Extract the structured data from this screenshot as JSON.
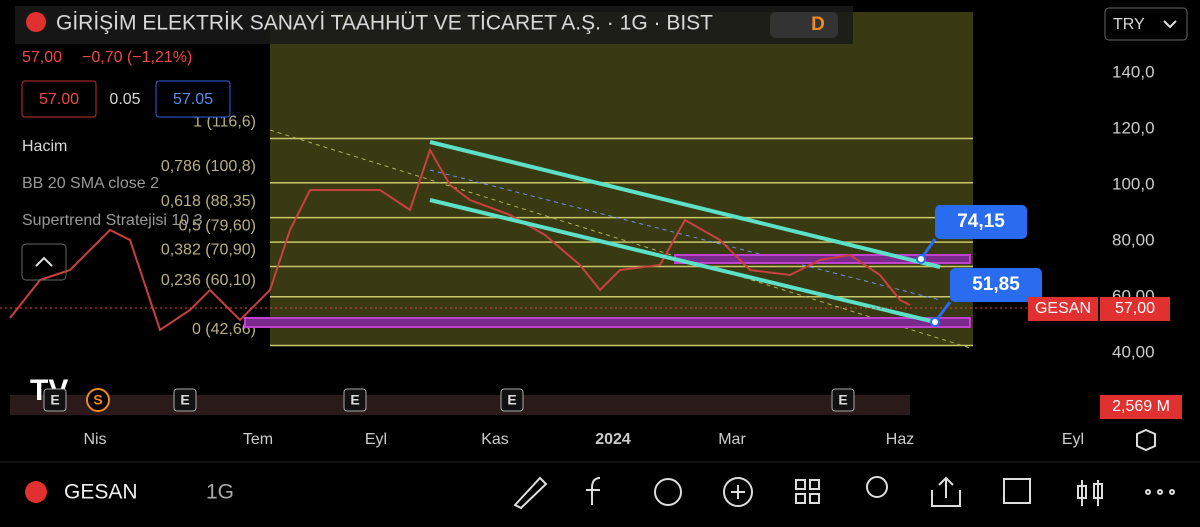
{
  "header": {
    "title": "GİRİŞİM ELEKTRİK SANAYİ TAAHHÜT VE TİCARET A.Ş. · 1G · BIST",
    "badge": "D",
    "price": "57,00",
    "change": "−0,70 (−1,21%)",
    "bid": "57.00",
    "spread": "0.05",
    "ask": "57.05"
  },
  "indicators": [
    "Hacim",
    "BB 20 SMA close 2",
    "Supertrend Stratejisi 10 3"
  ],
  "currency": "TRY",
  "y_axis": {
    "ticks": [
      {
        "value": 140,
        "label": "140,0"
      },
      {
        "value": 120,
        "label": "120,0"
      },
      {
        "value": 100,
        "label": "100,0"
      },
      {
        "value": 80,
        "label": "80,00"
      },
      {
        "value": 60,
        "label": "60,00"
      },
      {
        "value": 40,
        "label": "40,00"
      }
    ]
  },
  "fib_levels": [
    {
      "value": 116.6,
      "label": "1 (116,6)"
    },
    {
      "value": 100.8,
      "label": "0,786 (100,8)"
    },
    {
      "value": 88.35,
      "label": "0,618 (88,35)"
    },
    {
      "value": 79.6,
      "label": "0,5 (79,60)"
    },
    {
      "value": 70.9,
      "label": "0,382 (70,90)"
    },
    {
      "value": 60.1,
      "label": "0,236 (60,10)"
    },
    {
      "value": 42.66,
      "label": "0 (42,66)"
    }
  ],
  "callouts": [
    {
      "value": 74.15,
      "label": "74,15"
    },
    {
      "value": 51.85,
      "label": "51,85"
    }
  ],
  "price_tag": {
    "symbol": "GESAN",
    "price": "57,00"
  },
  "volume_tag": "2,569 M",
  "events": [
    "E",
    "S",
    "E",
    "E",
    "E",
    "E"
  ],
  "x_axis": [
    "Nis",
    "Tem",
    "Eyl",
    "Kas",
    "2024",
    "Mar",
    "Haz",
    "Eyl"
  ],
  "toolbar": {
    "symbol": "GESAN",
    "interval": "1G"
  }
}
